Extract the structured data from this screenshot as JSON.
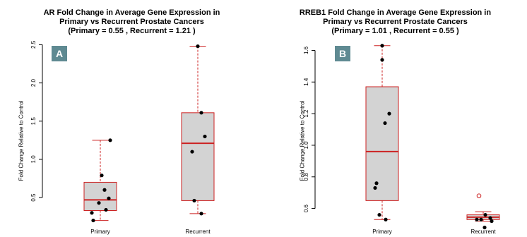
{
  "colors": {
    "box_fill": "#d3d3d3",
    "median": "#cc2222",
    "whisker": "#cc2222",
    "point": "#000000",
    "badge": "#5f8a92"
  },
  "chart_data": [
    {
      "type": "box",
      "panel_label": "A",
      "title": [
        "AR Fold Change in Average Gene Expression in",
        "Primary vs Recurrent Prostate Cancers",
        "(Primary = 0.55 , Recurrent =  1.21 )"
      ],
      "ylabel": "Fold Change Relative to Control",
      "xlabel": "",
      "ylim": [
        0.15,
        2.55
      ],
      "yticks": [
        0.5,
        1.0,
        1.5,
        2.0,
        2.5
      ],
      "ytick_labels": [
        "0.5",
        "1.0",
        "1.5",
        "2.0",
        "2.5"
      ],
      "categories": [
        "Primary",
        "Recurrent"
      ],
      "boxes": [
        {
          "min": 0.2,
          "q1": 0.33,
          "median": 0.47,
          "q3": 0.7,
          "max": 1.25
        },
        {
          "min": 0.29,
          "q1": 0.46,
          "median": 1.21,
          "q3": 1.61,
          "max": 2.48
        }
      ],
      "points": [
        [
          1.25,
          0.79,
          0.6,
          0.49,
          0.43,
          0.34,
          0.3,
          0.2
        ],
        [
          2.48,
          1.61,
          1.3,
          1.1,
          0.46,
          0.29
        ]
      ],
      "open_points": [
        [],
        []
      ]
    },
    {
      "type": "box",
      "panel_label": "B",
      "title": [
        "RREB1 Fold Change in Average Gene Expression in",
        "Primary vs Recurrent Prostate Cancers",
        "(Primary = 1.01 , Recurrent =  0.55 )"
      ],
      "ylabel": "Fold Change Relative to Control",
      "xlabel": "",
      "ylim": [
        0.5,
        1.66
      ],
      "yticks": [
        0.6,
        0.8,
        1.0,
        1.2,
        1.4,
        1.6
      ],
      "ytick_labels": [
        "0.6",
        "0.8",
        "1.0",
        "1.2",
        "1.4",
        "1.6"
      ],
      "categories": [
        "Primary",
        "Recurrent"
      ],
      "boxes": [
        {
          "min": 0.53,
          "q1": 0.65,
          "median": 0.96,
          "q3": 1.37,
          "max": 1.63
        },
        {
          "min": 0.52,
          "q1": 0.53,
          "median": 0.545,
          "q3": 0.56,
          "max": 0.58
        }
      ],
      "points": [
        [
          1.63,
          1.54,
          1.2,
          1.14,
          0.76,
          0.73,
          0.56,
          0.53
        ],
        [
          0.68,
          0.56,
          0.54,
          0.53,
          0.53,
          0.52,
          0.48
        ]
      ],
      "open_points": [
        [],
        [
          0.68
        ]
      ]
    }
  ]
}
